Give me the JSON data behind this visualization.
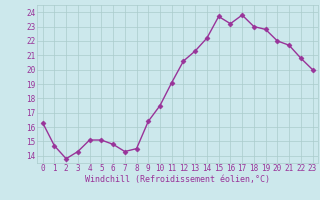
{
  "x": [
    0,
    1,
    2,
    3,
    4,
    5,
    6,
    7,
    8,
    9,
    10,
    11,
    12,
    13,
    14,
    15,
    16,
    17,
    18,
    19,
    20,
    21,
    22,
    23
  ],
  "y": [
    16.3,
    14.7,
    13.8,
    14.3,
    15.1,
    15.1,
    14.8,
    14.3,
    14.5,
    16.4,
    17.5,
    19.1,
    20.6,
    21.3,
    22.2,
    23.7,
    23.2,
    23.8,
    23.0,
    22.8,
    22.0,
    21.7,
    20.8,
    20.0
  ],
  "line_color": "#993399",
  "marker": "D",
  "marker_size": 2.5,
  "bg_color": "#cce8ec",
  "grid_color": "#aacccc",
  "xlabel": "Windchill (Refroidissement éolien,°C)",
  "ylim": [
    13.5,
    24.5
  ],
  "yticks": [
    14,
    15,
    16,
    17,
    18,
    19,
    20,
    21,
    22,
    23,
    24
  ],
  "xticks": [
    0,
    1,
    2,
    3,
    4,
    5,
    6,
    7,
    8,
    9,
    10,
    11,
    12,
    13,
    14,
    15,
    16,
    17,
    18,
    19,
    20,
    21,
    22,
    23
  ],
  "xlabel_fontsize": 6.0,
  "tick_fontsize": 5.5,
  "line_width": 1.0
}
